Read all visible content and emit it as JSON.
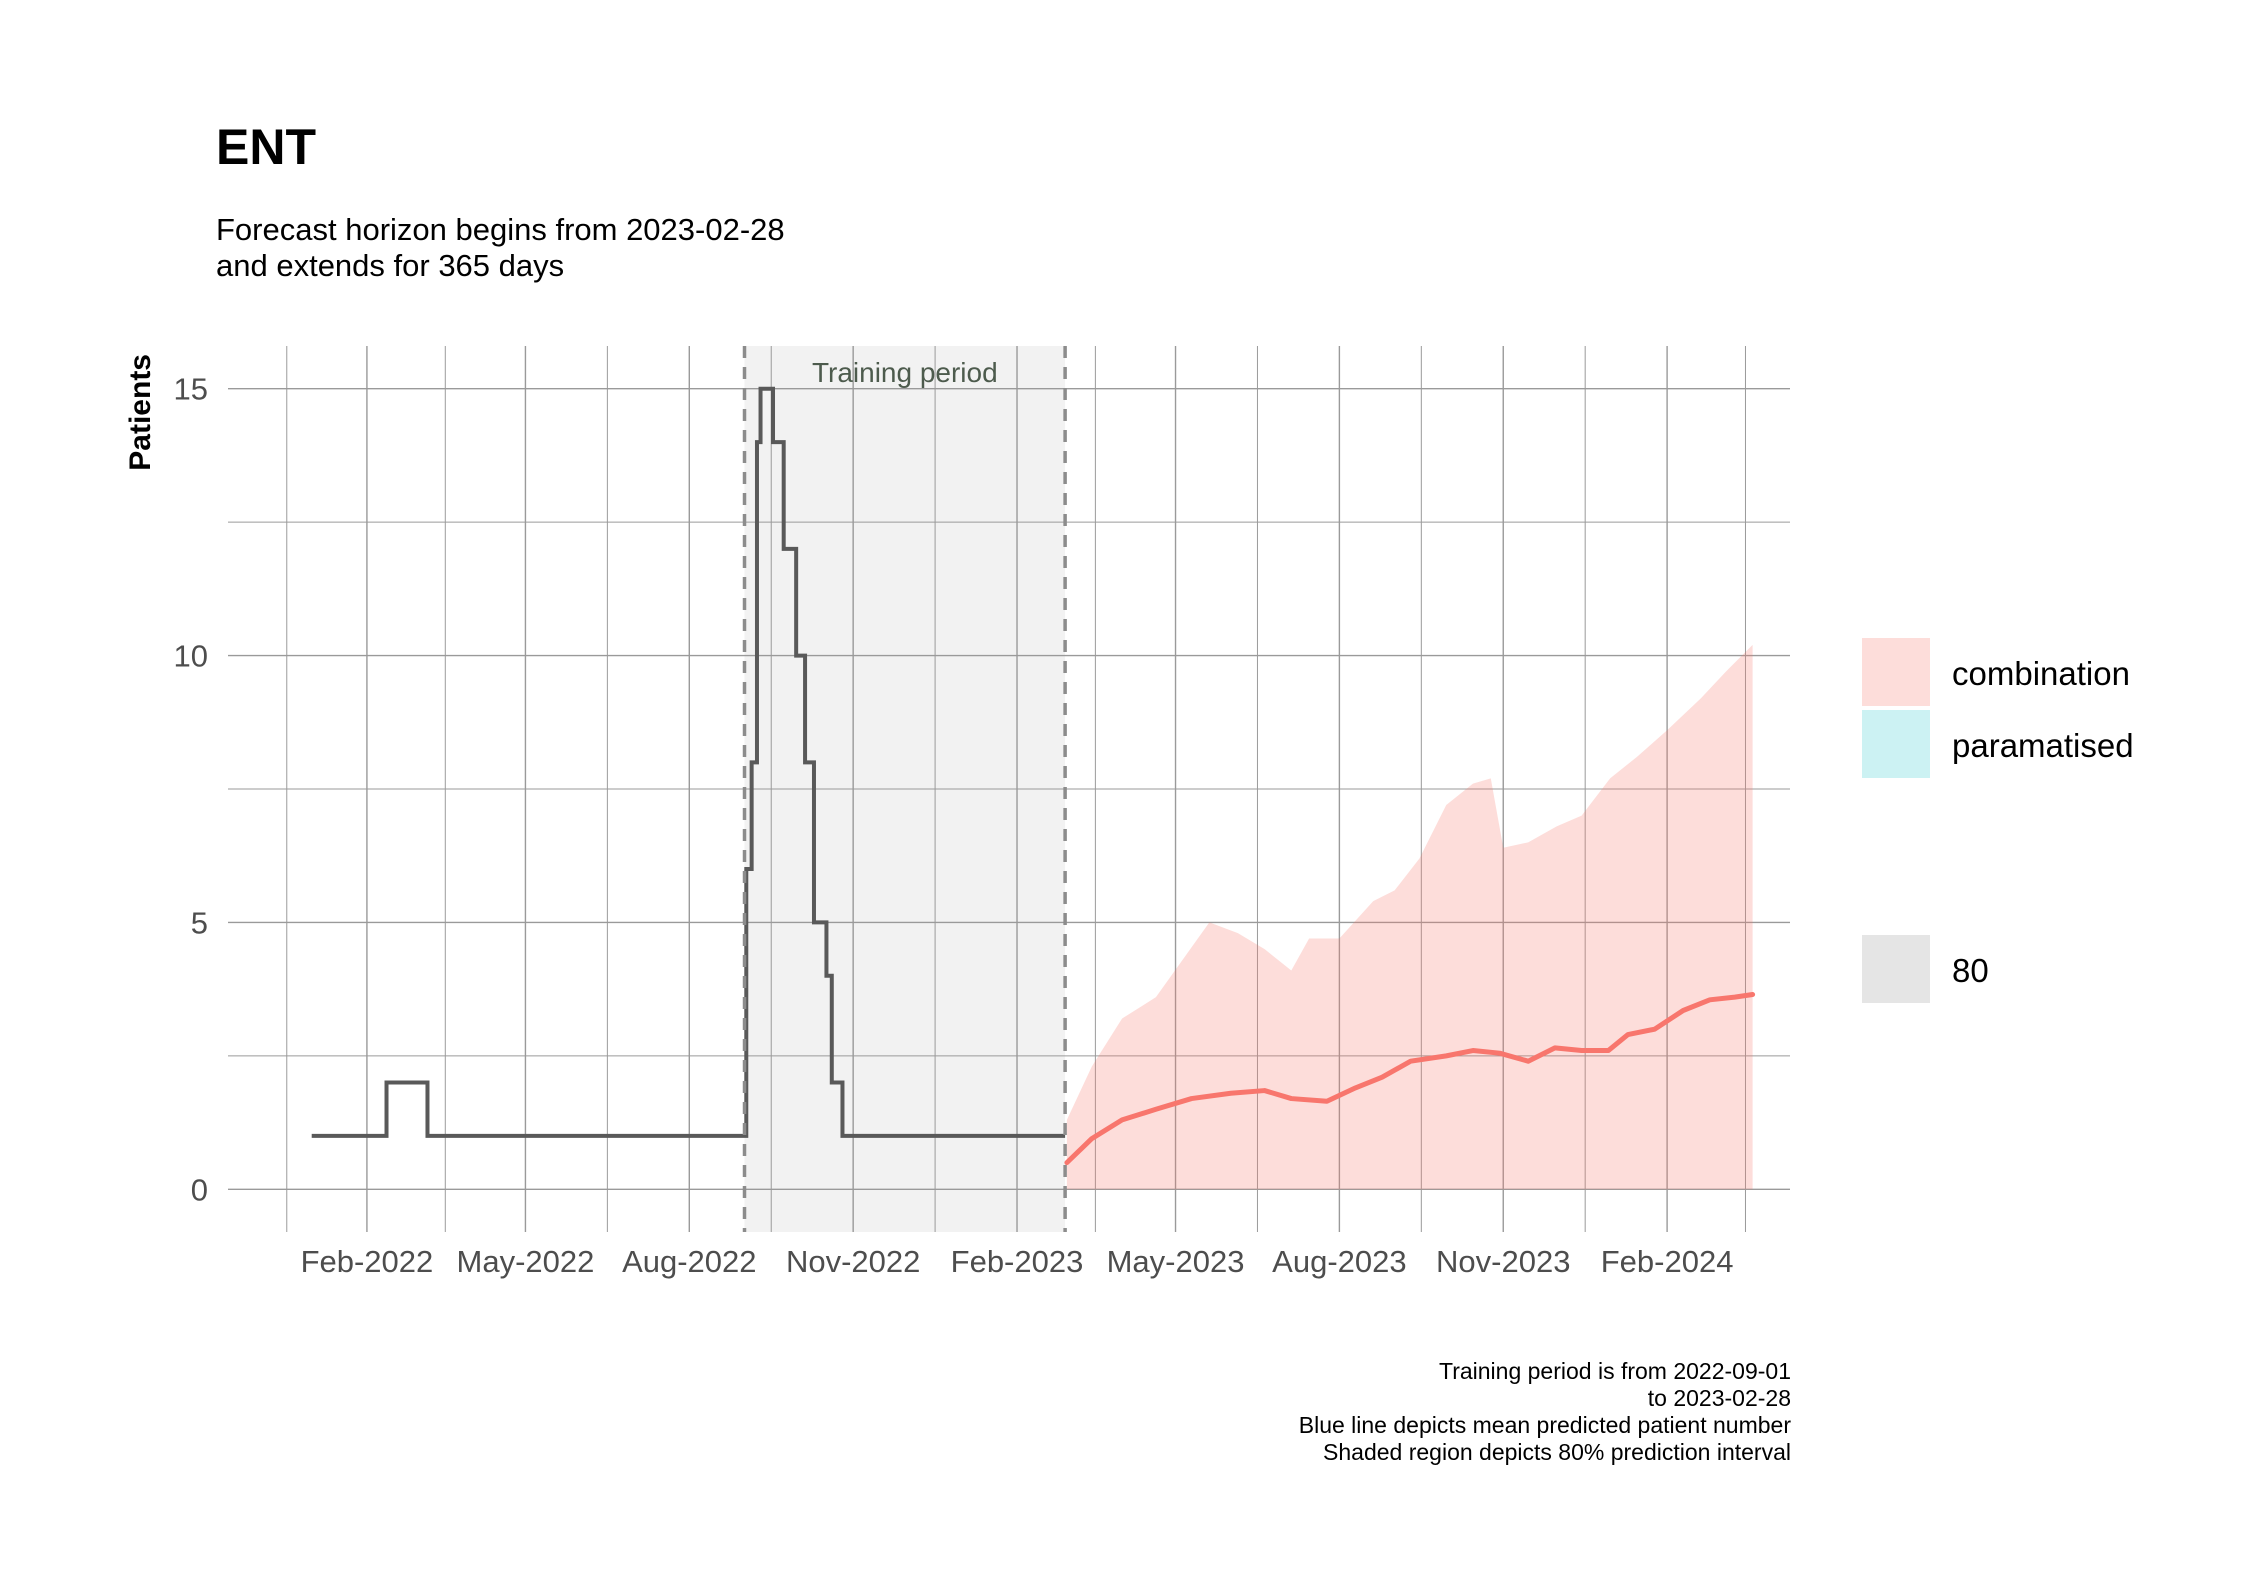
{
  "title": "ENT",
  "subtitle_line1": "Forecast horizon begins from 2023-02-28",
  "subtitle_line2": "and extends for 365 days",
  "annotation": "Training period",
  "legend": {
    "fill_entries": [
      {
        "label": "combination",
        "color": "#F8766D"
      },
      {
        "label": "paramatised",
        "color": "#00BFC4"
      }
    ],
    "interval_entry": {
      "label": "80",
      "color": "#D9D9D9"
    }
  },
  "caption": {
    "line1": "Training period is from 2022-09-01",
    "line2": "to 2023-02-28",
    "line3": "Blue line depicts mean predicted patient number",
    "line4": "Shaded region depicts 80% prediction interval"
  },
  "colors": {
    "actual_line": "#595959",
    "forecast_mean": "#F8766D",
    "forecast_band": "#F8766D",
    "training_shade": "#F2F2F2",
    "grid": "#9A9A9A",
    "dashed": "#8C8C8C"
  },
  "chart_data": {
    "type": "line",
    "title": "ENT",
    "xlabel": "",
    "ylabel": "Patients",
    "x_axis": "date",
    "xlim": [
      "2021-11-15",
      "2024-04-10"
    ],
    "ylim": [
      -0.8,
      15.8
    ],
    "x_ticks": [
      {
        "date": "2022-02-01",
        "label": "Feb-2022"
      },
      {
        "date": "2022-05-01",
        "label": "May-2022"
      },
      {
        "date": "2022-08-01",
        "label": "Aug-2022"
      },
      {
        "date": "2022-11-01",
        "label": "Nov-2022"
      },
      {
        "date": "2023-02-01",
        "label": "Feb-2023"
      },
      {
        "date": "2023-05-01",
        "label": "May-2023"
      },
      {
        "date": "2023-08-01",
        "label": "Aug-2023"
      },
      {
        "date": "2023-11-01",
        "label": "Nov-2023"
      },
      {
        "date": "2024-02-01",
        "label": "Feb-2024"
      }
    ],
    "y_ticks": [
      0,
      5,
      10,
      15
    ],
    "grid": true,
    "legend_position": "right",
    "training_period": {
      "start": "2022-09-01",
      "end": "2023-02-28"
    },
    "series": [
      {
        "name": "actual",
        "kind": "step",
        "points": [
          [
            "2022-01-01",
            1
          ],
          [
            "2022-02-12",
            2
          ],
          [
            "2022-03-07",
            1
          ],
          [
            "2022-09-02",
            6
          ],
          [
            "2022-09-05",
            8
          ],
          [
            "2022-09-08",
            14
          ],
          [
            "2022-09-10",
            15
          ],
          [
            "2022-09-17",
            14
          ],
          [
            "2022-09-23",
            12
          ],
          [
            "2022-09-30",
            10
          ],
          [
            "2022-10-05",
            8
          ],
          [
            "2022-10-10",
            5
          ],
          [
            "2022-10-17",
            4
          ],
          [
            "2022-10-20",
            2
          ],
          [
            "2022-10-26",
            1
          ],
          [
            "2023-02-28",
            1
          ]
        ]
      },
      {
        "name": "combination",
        "kind": "forecast_mean",
        "points": [
          [
            "2023-03-01",
            0.5
          ],
          [
            "2023-03-15",
            0.95
          ],
          [
            "2023-04-01",
            1.3
          ],
          [
            "2023-04-20",
            1.5
          ],
          [
            "2023-05-10",
            1.7
          ],
          [
            "2023-06-01",
            1.8
          ],
          [
            "2023-06-20",
            1.85
          ],
          [
            "2023-07-05",
            1.7
          ],
          [
            "2023-07-25",
            1.65
          ],
          [
            "2023-08-10",
            1.9
          ],
          [
            "2023-08-25",
            2.1
          ],
          [
            "2023-09-10",
            2.4
          ],
          [
            "2023-09-30",
            2.5
          ],
          [
            "2023-10-15",
            2.6
          ],
          [
            "2023-10-30",
            2.55
          ],
          [
            "2023-11-15",
            2.4
          ],
          [
            "2023-11-30",
            2.65
          ],
          [
            "2023-12-15",
            2.6
          ],
          [
            "2023-12-30",
            2.6
          ],
          [
            "2024-01-10",
            2.9
          ],
          [
            "2024-01-25",
            3.0
          ],
          [
            "2024-02-10",
            3.35
          ],
          [
            "2024-02-25",
            3.55
          ],
          [
            "2024-03-10",
            3.6
          ],
          [
            "2024-03-20",
            3.65
          ]
        ]
      },
      {
        "name": "combination",
        "kind": "interval_80",
        "lower": 0,
        "upper_points": [
          [
            "2023-03-01",
            1.3
          ],
          [
            "2023-03-15",
            2.3
          ],
          [
            "2023-04-01",
            3.2
          ],
          [
            "2023-04-20",
            3.6
          ],
          [
            "2023-05-05",
            4.3
          ],
          [
            "2023-05-20",
            5.0
          ],
          [
            "2023-06-05",
            4.8
          ],
          [
            "2023-06-20",
            4.5
          ],
          [
            "2023-07-05",
            4.1
          ],
          [
            "2023-07-15",
            4.7
          ],
          [
            "2023-08-01",
            4.7
          ],
          [
            "2023-08-20",
            5.4
          ],
          [
            "2023-09-01",
            5.6
          ],
          [
            "2023-09-15",
            6.2
          ],
          [
            "2023-09-30",
            7.2
          ],
          [
            "2023-10-15",
            7.6
          ],
          [
            "2023-10-25",
            7.7
          ],
          [
            "2023-11-01",
            6.4
          ],
          [
            "2023-11-15",
            6.5
          ],
          [
            "2023-12-01",
            6.8
          ],
          [
            "2023-12-15",
            7.0
          ],
          [
            "2023-12-31",
            7.7
          ],
          [
            "2024-01-15",
            8.1
          ],
          [
            "2024-02-01",
            8.6
          ],
          [
            "2024-02-20",
            9.2
          ],
          [
            "2024-03-05",
            9.7
          ],
          [
            "2024-03-20",
            10.2
          ]
        ]
      }
    ]
  }
}
